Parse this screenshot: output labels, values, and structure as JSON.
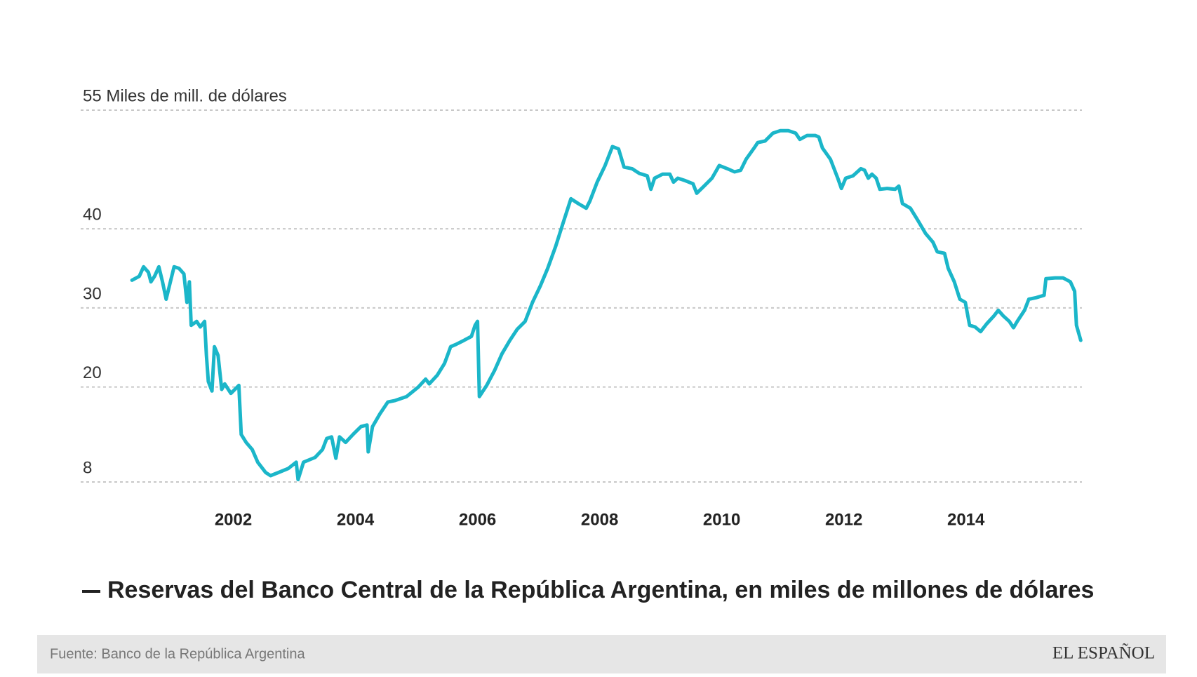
{
  "chart_data": {
    "type": "line",
    "x": [
      2000.34,
      2000.46,
      2000.53,
      2000.61,
      2000.65,
      2000.71,
      2000.78,
      2000.84,
      2000.9,
      2000.96,
      2001.03,
      2001.11,
      2001.19,
      2001.24,
      2001.28,
      2001.31,
      2001.4,
      2001.46,
      2001.53,
      2001.56,
      2001.59,
      2001.65,
      2001.69,
      2001.75,
      2001.81,
      2001.86,
      2001.96,
      2002.09,
      2002.13,
      2002.21,
      2002.31,
      2002.4,
      2002.53,
      2002.61,
      2002.74,
      2002.9,
      2003.03,
      2003.06,
      2003.15,
      2003.34,
      2003.46,
      2003.53,
      2003.61,
      2003.68,
      2003.74,
      2003.84,
      2003.96,
      2004.09,
      2004.19,
      2004.21,
      2004.28,
      2004.4,
      2004.53,
      2004.65,
      2004.84,
      2005.03,
      2005.15,
      2005.21,
      2005.34,
      2005.46,
      2005.56,
      2005.65,
      2005.78,
      2005.9,
      2005.96,
      2006.0,
      2006.03,
      2006.15,
      2006.28,
      2006.4,
      2006.53,
      2006.65,
      2006.78,
      2006.9,
      2007.03,
      2007.15,
      2007.28,
      2007.4,
      2007.53,
      2007.65,
      2007.78,
      2007.84,
      2007.96,
      2008.09,
      2008.21,
      2008.31,
      2008.4,
      2008.53,
      2008.65,
      2008.78,
      2008.84,
      2008.9,
      2009.03,
      2009.15,
      2009.21,
      2009.28,
      2009.4,
      2009.53,
      2009.59,
      2009.71,
      2009.84,
      2009.96,
      2010.09,
      2010.21,
      2010.31,
      2010.4,
      2010.53,
      2010.59,
      2010.71,
      2010.84,
      2010.96,
      2011.09,
      2011.21,
      2011.28,
      2011.4,
      2011.53,
      2011.59,
      2011.65,
      2011.78,
      2011.9,
      2011.96,
      2012.03,
      2012.15,
      2012.28,
      2012.34,
      2012.4,
      2012.46,
      2012.53,
      2012.59,
      2012.71,
      2012.84,
      2012.9,
      2012.96,
      2013.09,
      2013.21,
      2013.34,
      2013.46,
      2013.53,
      2013.65,
      2013.71,
      2013.81,
      2013.9,
      2013.99,
      2014.06,
      2014.15,
      2014.24,
      2014.34,
      2014.46,
      2014.53,
      2014.61,
      2014.71,
      2014.78,
      2014.84,
      2014.96,
      2015.03,
      2015.15,
      2015.28,
      2015.31,
      2015.46,
      2015.59,
      2015.71,
      2015.78,
      2015.81,
      2015.88
    ],
    "series": [
      {
        "name": "Reservas del Banco Central de la República Argentina, en miles de millones de dólares",
        "color": "#1bb6c9",
        "values": [
          33.5,
          34.0,
          35.2,
          34.5,
          33.3,
          34.0,
          35.2,
          33.3,
          31.1,
          33.0,
          35.2,
          35.0,
          34.3,
          30.7,
          33.3,
          27.8,
          28.3,
          27.6,
          28.3,
          24.0,
          20.7,
          19.5,
          25.1,
          24.0,
          19.7,
          20.4,
          19.2,
          20.2,
          14.0,
          13.0,
          12.1,
          10.5,
          9.2,
          8.8,
          9.2,
          9.7,
          10.5,
          8.3,
          10.5,
          11.1,
          12.1,
          13.5,
          13.7,
          11.0,
          13.7,
          13.0,
          14.0,
          15.0,
          15.2,
          11.8,
          15.0,
          16.6,
          18.1,
          18.3,
          18.8,
          20.0,
          21.0,
          20.4,
          21.5,
          23.0,
          25.1,
          25.4,
          25.9,
          26.4,
          27.8,
          28.3,
          18.8,
          20.2,
          22.1,
          24.2,
          25.9,
          27.3,
          28.3,
          30.7,
          32.8,
          35.0,
          37.8,
          40.7,
          43.8,
          43.2,
          42.6,
          43.5,
          45.9,
          48.0,
          50.4,
          50.1,
          47.8,
          47.6,
          47.0,
          46.7,
          45.0,
          46.4,
          46.9,
          46.9,
          45.9,
          46.4,
          46.1,
          45.7,
          44.5,
          45.4,
          46.4,
          48.0,
          47.6,
          47.2,
          47.4,
          48.8,
          50.2,
          50.9,
          51.1,
          52.1,
          52.4,
          52.4,
          52.1,
          51.3,
          51.8,
          51.8,
          51.6,
          50.2,
          48.8,
          46.4,
          45.1,
          46.4,
          46.7,
          47.6,
          47.4,
          46.4,
          46.9,
          46.4,
          45.0,
          45.1,
          45.0,
          45.4,
          43.2,
          42.6,
          41.1,
          39.4,
          38.3,
          37.1,
          36.9,
          35.0,
          33.3,
          31.1,
          30.7,
          27.8,
          27.6,
          27.0,
          28.0,
          29.0,
          29.7,
          29.0,
          28.3,
          27.5,
          28.3,
          29.7,
          31.1,
          31.3,
          31.6,
          33.7,
          33.8,
          33.8,
          33.3,
          32.1,
          27.8,
          25.9
        ]
      }
    ],
    "xlim": [
      1999.5,
      2015.9
    ],
    "xticks": [
      2002,
      2004,
      2006,
      2008,
      2010,
      2012,
      2014
    ],
    "ylim": [
      8,
      55
    ],
    "yticks": [
      8,
      20,
      30,
      40,
      {
        "value": 55,
        "label": "55 Miles de mill. de dólares"
      }
    ],
    "grid": true,
    "source": "Fuente: Banco de la República Argentina",
    "brand": "EL ESPAÑOL"
  }
}
